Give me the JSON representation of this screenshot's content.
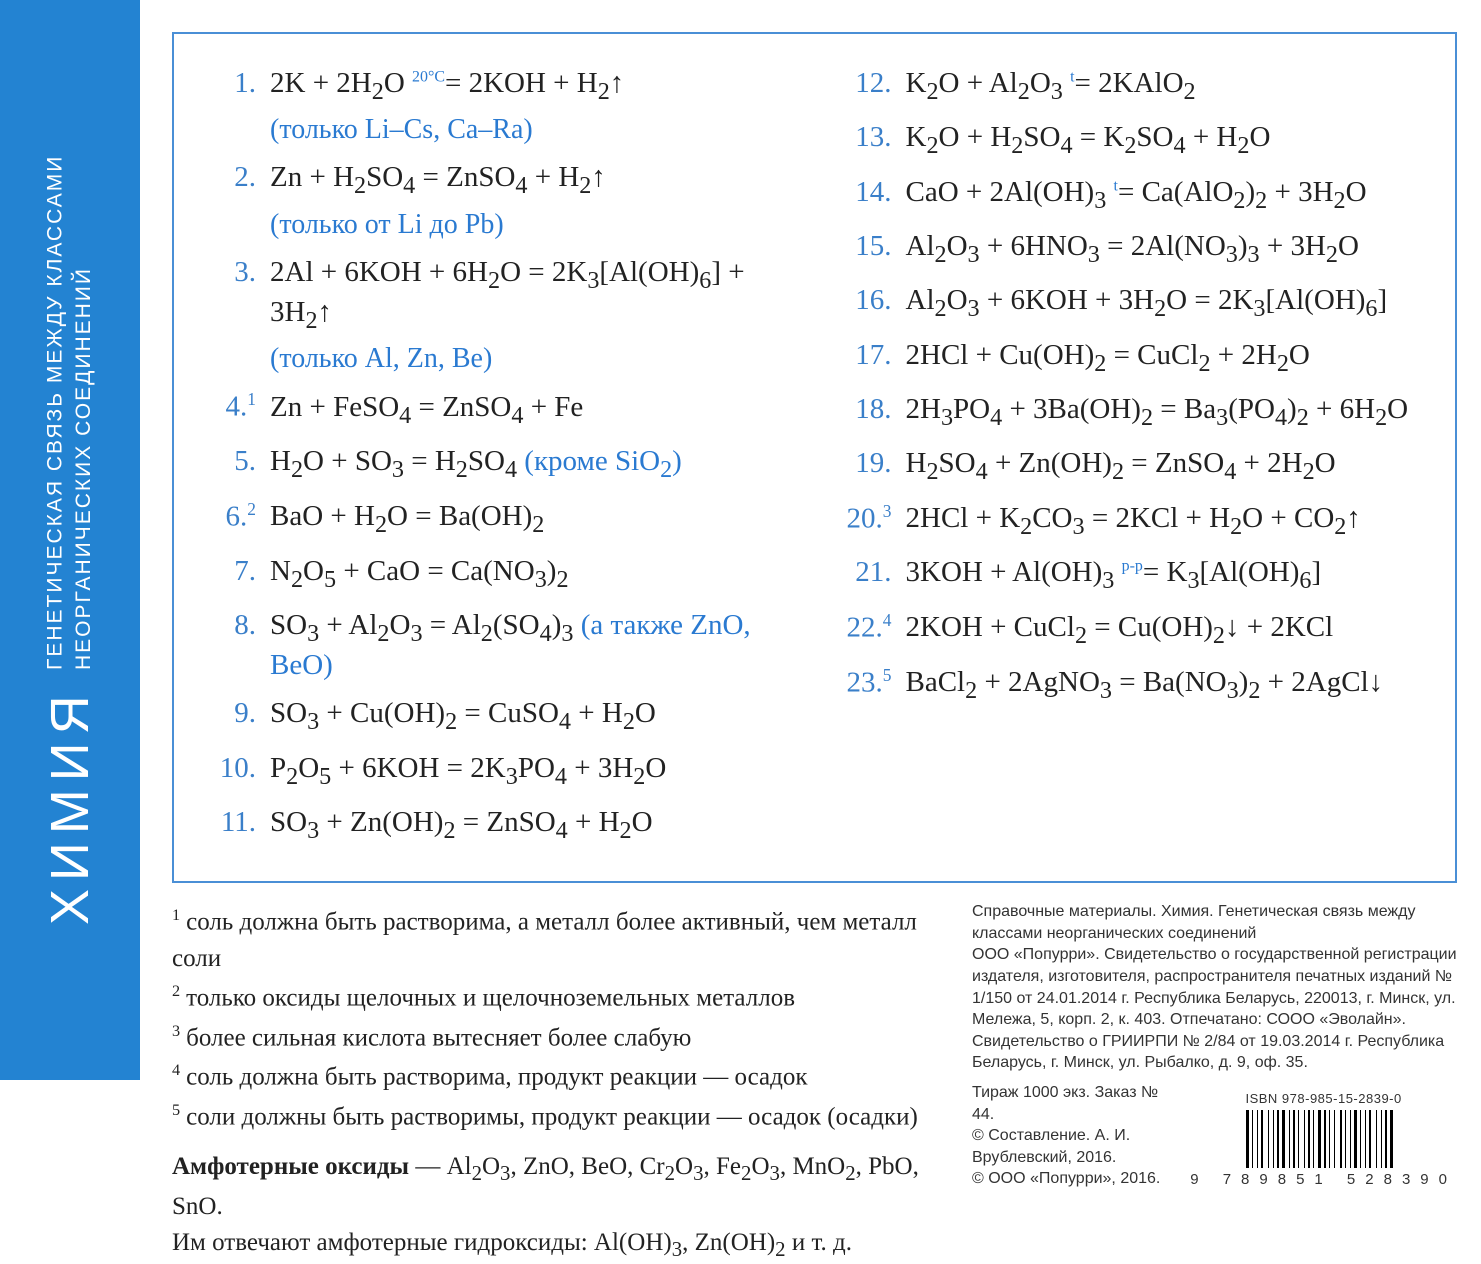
{
  "colors": {
    "spine_bg": "#2383d2",
    "note": "#2a7ad1",
    "number": "#3a7fc9",
    "frame": "#4a8fd6",
    "text": "#222222",
    "page": "#ffffff"
  },
  "spine": {
    "subject": "ХИМИЯ",
    "topic_line1": "ГЕНЕТИЧЕСКАЯ СВЯЗЬ МЕЖДУ КЛАССАМИ",
    "topic_line2": "НЕОРГАНИЧЕСКИХ СОЕДИНЕНИЙ"
  },
  "temp_annotation": "20°C",
  "equations_left": [
    {
      "n": "1.",
      "html": "2K + 2H<sub>2</sub>O <span class='above'>20°C</span>= 2KOH + H<sub>2</sub>↑",
      "sub": "(только Li–Cs, Ca–Ra)"
    },
    {
      "n": "2.",
      "html": "Zn + H<sub>2</sub>SO<sub>4</sub> = ZnSO<sub>4</sub> + H<sub>2</sub>↑",
      "sub": "(только от Li до Pb)"
    },
    {
      "n": "3.",
      "html": "2Al + 6KOH + 6H<sub>2</sub>O = 2K<sub>3</sub>[Al(OH)<sub>6</sub>] + 3H<sub>2</sub>↑",
      "sub": "(только Al, Zn, Be)"
    },
    {
      "n": "4.",
      "nsup": "1",
      "html": "Zn + FeSO<sub>4</sub> = ZnSO<sub>4</sub> + Fe"
    },
    {
      "n": "5.",
      "html": "H<sub>2</sub>O + SO<sub>3</sub> = H<sub>2</sub>SO<sub>4</sub> <span class='note'>(кроме SiO<sub>2</sub>)</span>"
    },
    {
      "n": "6.",
      "nsup": "2",
      "html": "BaO + H<sub>2</sub>O = Ba(OH)<sub>2</sub>"
    },
    {
      "n": "7.",
      "html": "N<sub>2</sub>O<sub>5</sub> + CaO = Ca(NO<sub>3</sub>)<sub>2</sub>"
    },
    {
      "n": "8.",
      "html": "SO<sub>3</sub> + Al<sub>2</sub>O<sub>3</sub> = Al<sub>2</sub>(SO<sub>4</sub>)<sub>3</sub> <span class='note'>(а также ZnO, BeO)</span>"
    },
    {
      "n": "9.",
      "html": "SO<sub>3</sub> + Cu(OH)<sub>2</sub> = CuSO<sub>4</sub> + H<sub>2</sub>O"
    },
    {
      "n": "10.",
      "html": "P<sub>2</sub>O<sub>5</sub> + 6KOH = 2K<sub>3</sub>PO<sub>4</sub> + 3H<sub>2</sub>O"
    },
    {
      "n": "11.",
      "html": "SO<sub>3</sub> + Zn(OH)<sub>2</sub> = ZnSO<sub>4</sub> + H<sub>2</sub>O"
    }
  ],
  "equations_right": [
    {
      "n": "12.",
      "html": "K<sub>2</sub>O + Al<sub>2</sub>O<sub>3</sub> <span class='above'>t</span>= 2KAlO<sub>2</sub>"
    },
    {
      "n": "13.",
      "html": "K<sub>2</sub>O + H<sub>2</sub>SO<sub>4</sub> = K<sub>2</sub>SO<sub>4</sub> + H<sub>2</sub>O"
    },
    {
      "n": "14.",
      "html": "CaO + 2Al(OH)<sub>3</sub> <span class='above'>t</span>= Ca(AlO<sub>2</sub>)<sub>2</sub> + 3H<sub>2</sub>O"
    },
    {
      "n": "15.",
      "html": "Al<sub>2</sub>O<sub>3</sub> + 6HNO<sub>3</sub> = 2Al(NO<sub>3</sub>)<sub>3</sub> + 3H<sub>2</sub>O"
    },
    {
      "n": "16.",
      "html": "Al<sub>2</sub>O<sub>3</sub> + 6KOH + 3H<sub>2</sub>O = 2K<sub>3</sub>[Al(OH)<sub>6</sub>]"
    },
    {
      "n": "17.",
      "html": "2HCl + Cu(OH)<sub>2</sub> = CuCl<sub>2</sub> + 2H<sub>2</sub>O"
    },
    {
      "n": "18.",
      "html": "2H<sub>3</sub>PO<sub>4</sub> + 3Ba(OH)<sub>2</sub> = Ba<sub>3</sub>(PO<sub>4</sub>)<sub>2</sub> + 6H<sub>2</sub>O"
    },
    {
      "n": "19.",
      "html": "H<sub>2</sub>SO<sub>4</sub> + Zn(OH)<sub>2</sub> = ZnSO<sub>4</sub> + 2H<sub>2</sub>O"
    },
    {
      "n": "20.",
      "nsup": "3",
      "html": "2HCl + K<sub>2</sub>CO<sub>3</sub> = 2KCl + H<sub>2</sub>O + CO<sub>2</sub>↑"
    },
    {
      "n": "21.",
      "html": "3KOH + Al(OH)<sub>3</sub> <span class='above'>p-p</span>= K<sub>3</sub>[Al(OH)<sub>6</sub>]"
    },
    {
      "n": "22.",
      "nsup": "4",
      "html": "2KOH + CuCl<sub>2</sub> = Cu(OH)<sub>2</sub>↓ + 2KCl"
    },
    {
      "n": "23.",
      "nsup": "5",
      "html": "BaCl<sub>2</sub> + 2AgNO<sub>3</sub> = Ba(NO<sub>3</sub>)<sub>2</sub> + 2AgCl↓"
    }
  ],
  "footnotes": [
    {
      "sup": "1",
      "text": "соль должна быть растворима, а металл более активный, чем металл соли"
    },
    {
      "sup": "2",
      "text": "только оксиды щелочных и щелочноземельных металлов"
    },
    {
      "sup": "3",
      "text": "более сильная кислота вытесняет более слабую"
    },
    {
      "sup": "4",
      "text": "соль должна быть растворима, продукт реакции — осадок"
    },
    {
      "sup": "5",
      "text": "соли должны быть растворимы, продукт реакции — осадок (осадки)"
    }
  ],
  "amphoterics": {
    "label": "Амфотерные оксиды",
    "list_html": "Al<sub>2</sub>O<sub>3</sub>, ZnO, BeO, Cr<sub>2</sub>O<sub>3</sub>, Fe<sub>2</sub>O<sub>3</sub>, MnO<sub>2</sub>, PbO, SnO.",
    "line2_html": "Им отвечают амфотерные гидроксиды: Al(OH)<sub>3</sub>, Zn(OH)<sub>2</sub> и т. д."
  },
  "imprint": {
    "line1": "Справочные материалы. Химия. Генетическая связь между классами неорганических соединений",
    "line2": "ООО «Попурри». Свидетельство о государственной регистрации издателя, изготовителя, распространителя печатных изданий № 1/150 от 24.01.2014 г. Республика Беларусь, 220013, г. Минск, ул. Мележа, 5, корп. 2, к. 403. Отпечатано: СООО «Эволайн». Свидетельство о ГРИИРПИ № 2/84 от 19.03.2014 г. Республика Беларусь, г. Минск, ул. Рыбалко, д. 9, оф. 35.",
    "line3": "Тираж 1000 экз. Заказ № 44.",
    "line4": "© Составление. А. И. Врублевский, 2016.",
    "line5": "© ООО «Попурри», 2016.",
    "isbn": "ISBN 978-985-15-2839-0",
    "barcode_digits": "9 789851 528390"
  }
}
